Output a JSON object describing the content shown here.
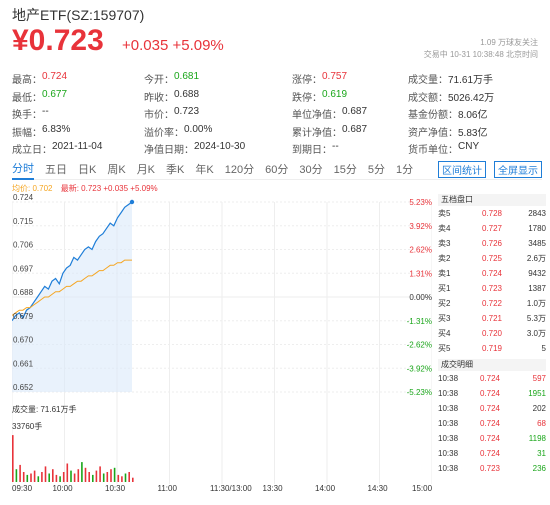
{
  "header": {
    "title": "地产ETF(SZ:159707)",
    "price": "¥0.723",
    "change": "+0.035 +5.09%",
    "followers": "1.09 万球友关注",
    "status": "交易中 10-31 10:38:48 北京时间"
  },
  "stats": [
    [
      {
        "k": "最高：",
        "v": "0.724",
        "cls": "red"
      },
      {
        "k": "今开：",
        "v": "0.681",
        "cls": "green"
      },
      {
        "k": "涨停：",
        "v": "0.757",
        "cls": "red"
      },
      {
        "k": "成交量：",
        "v": "71.61万手",
        "cls": ""
      }
    ],
    [
      {
        "k": "最低：",
        "v": "0.677",
        "cls": "green"
      },
      {
        "k": "昨收：",
        "v": "0.688",
        "cls": ""
      },
      {
        "k": "跌停：",
        "v": "0.619",
        "cls": "green"
      },
      {
        "k": "成交额：",
        "v": "5026.42万",
        "cls": ""
      }
    ],
    [
      {
        "k": "换手：",
        "v": "--",
        "cls": ""
      },
      {
        "k": "市价：",
        "v": "0.723",
        "cls": ""
      },
      {
        "k": "单位净值：",
        "v": "0.687",
        "cls": ""
      },
      {
        "k": "基金份额：",
        "v": "8.06亿",
        "cls": ""
      }
    ],
    [
      {
        "k": "振幅：",
        "v": "6.83%",
        "cls": ""
      },
      {
        "k": "溢价率：",
        "v": "0.00%",
        "cls": ""
      },
      {
        "k": "累计净值：",
        "v": "0.687",
        "cls": ""
      },
      {
        "k": "资产净值：",
        "v": "5.83亿",
        "cls": ""
      }
    ],
    [
      {
        "k": "成立日：",
        "v": "2021-11-04",
        "cls": ""
      },
      {
        "k": "净值日期：",
        "v": "2024-10-30",
        "cls": ""
      },
      {
        "k": "到期日：",
        "v": "--",
        "cls": ""
      },
      {
        "k": "货币单位：",
        "v": "CNY",
        "cls": ""
      }
    ]
  ],
  "tabs": [
    "分时",
    "五日",
    "日K",
    "周K",
    "月K",
    "季K",
    "年K",
    "120分",
    "60分",
    "30分",
    "15分",
    "5分",
    "1分"
  ],
  "tab_actions": [
    "区间统计",
    "全屏显示"
  ],
  "legend": {
    "avg": "均价: 0.702",
    "latest": "最新: 0.723 +0.035 +5.09%"
  },
  "chart_data": {
    "type": "line",
    "y_ticks_left": [
      "0.724",
      "0.715",
      "0.706",
      "0.697",
      "0.688",
      "0.679",
      "0.670",
      "0.661",
      "0.652"
    ],
    "y_ticks_right": [
      "5.23%",
      "3.92%",
      "2.62%",
      "1.31%",
      "0.00%",
      "-1.31%",
      "-2.62%",
      "-3.92%",
      "-5.23%"
    ],
    "ylim": [
      0.652,
      0.724
    ],
    "x_ticks": [
      "09:30",
      "10:00",
      "10:30",
      "11:00",
      "11:30/13:00",
      "13:30",
      "14:00",
      "14:30",
      "15:00"
    ],
    "series": [
      {
        "values": [
          0.679,
          0.681,
          0.682,
          0.68,
          0.683,
          0.684,
          0.686,
          0.688,
          0.69,
          0.692,
          0.691,
          0.694,
          0.695,
          0.693,
          0.697,
          0.699,
          0.7,
          0.703,
          0.702,
          0.704,
          0.706,
          0.707,
          0.706,
          0.709,
          0.711,
          0.712,
          0.714,
          0.716,
          0.715,
          0.718,
          0.72,
          0.722,
          0.723,
          0.724
        ]
      },
      {
        "values": [
          0.681,
          0.682,
          0.683,
          0.683,
          0.684,
          0.684,
          0.685,
          0.686,
          0.687,
          0.688,
          0.688,
          0.689,
          0.69,
          0.69,
          0.691,
          0.692,
          0.692,
          0.693,
          0.694,
          0.694,
          0.695,
          0.696,
          0.696,
          0.697,
          0.698,
          0.698,
          0.699,
          0.7,
          0.7,
          0.701,
          0.701,
          0.702,
          0.702,
          0.702
        ]
      }
    ],
    "colors": {
      "price": "#1f7ed8",
      "avg": "#f5a623",
      "fill": "#dbeafa",
      "up": "#e8333a",
      "down": "#1aa61a"
    }
  },
  "volume": {
    "label": "成交量: 71.61万手",
    "max_label": "33760手",
    "ymax": 33760,
    "bars": [
      33000,
      9000,
      12000,
      7000,
      5000,
      6000,
      8000,
      4000,
      7000,
      11000,
      6000,
      9000,
      5000,
      4000,
      7000,
      13000,
      8000,
      6000,
      9000,
      14000,
      10000,
      7000,
      5000,
      8000,
      11000,
      6000,
      7000,
      9000,
      10000,
      5000,
      4000,
      6000,
      7000,
      3000
    ]
  },
  "order_book": {
    "title": "五档盘口",
    "rows": [
      {
        "side": "卖5",
        "price": "0.728",
        "qty": "2843"
      },
      {
        "side": "卖4",
        "price": "0.727",
        "qty": "1780"
      },
      {
        "side": "卖3",
        "price": "0.726",
        "qty": "3485"
      },
      {
        "side": "卖2",
        "price": "0.725",
        "qty": "2.6万"
      },
      {
        "side": "卖1",
        "price": "0.724",
        "qty": "9432"
      },
      {
        "side": "买1",
        "price": "0.723",
        "qty": "1387"
      },
      {
        "side": "买2",
        "price": "0.722",
        "qty": "1.0万"
      },
      {
        "side": "买3",
        "price": "0.721",
        "qty": "5.3万"
      },
      {
        "side": "买4",
        "price": "0.720",
        "qty": "3.0万"
      },
      {
        "side": "买5",
        "price": "0.719",
        "qty": "5"
      }
    ]
  },
  "trades": {
    "title": "成交明细",
    "rows": [
      {
        "time": "10:38",
        "price": "0.724",
        "qty": "597",
        "dir": "up"
      },
      {
        "time": "10:38",
        "price": "0.724",
        "qty": "1951",
        "dir": "down"
      },
      {
        "time": "10:38",
        "price": "0.724",
        "qty": "202",
        "dir": "neutral"
      },
      {
        "time": "10:38",
        "price": "0.724",
        "qty": "68",
        "dir": "up"
      },
      {
        "time": "10:38",
        "price": "0.724",
        "qty": "1198",
        "dir": "down"
      },
      {
        "time": "10:38",
        "price": "0.724",
        "qty": "31",
        "dir": "down"
      },
      {
        "time": "10:38",
        "price": "0.723",
        "qty": "236",
        "dir": "down"
      }
    ]
  }
}
